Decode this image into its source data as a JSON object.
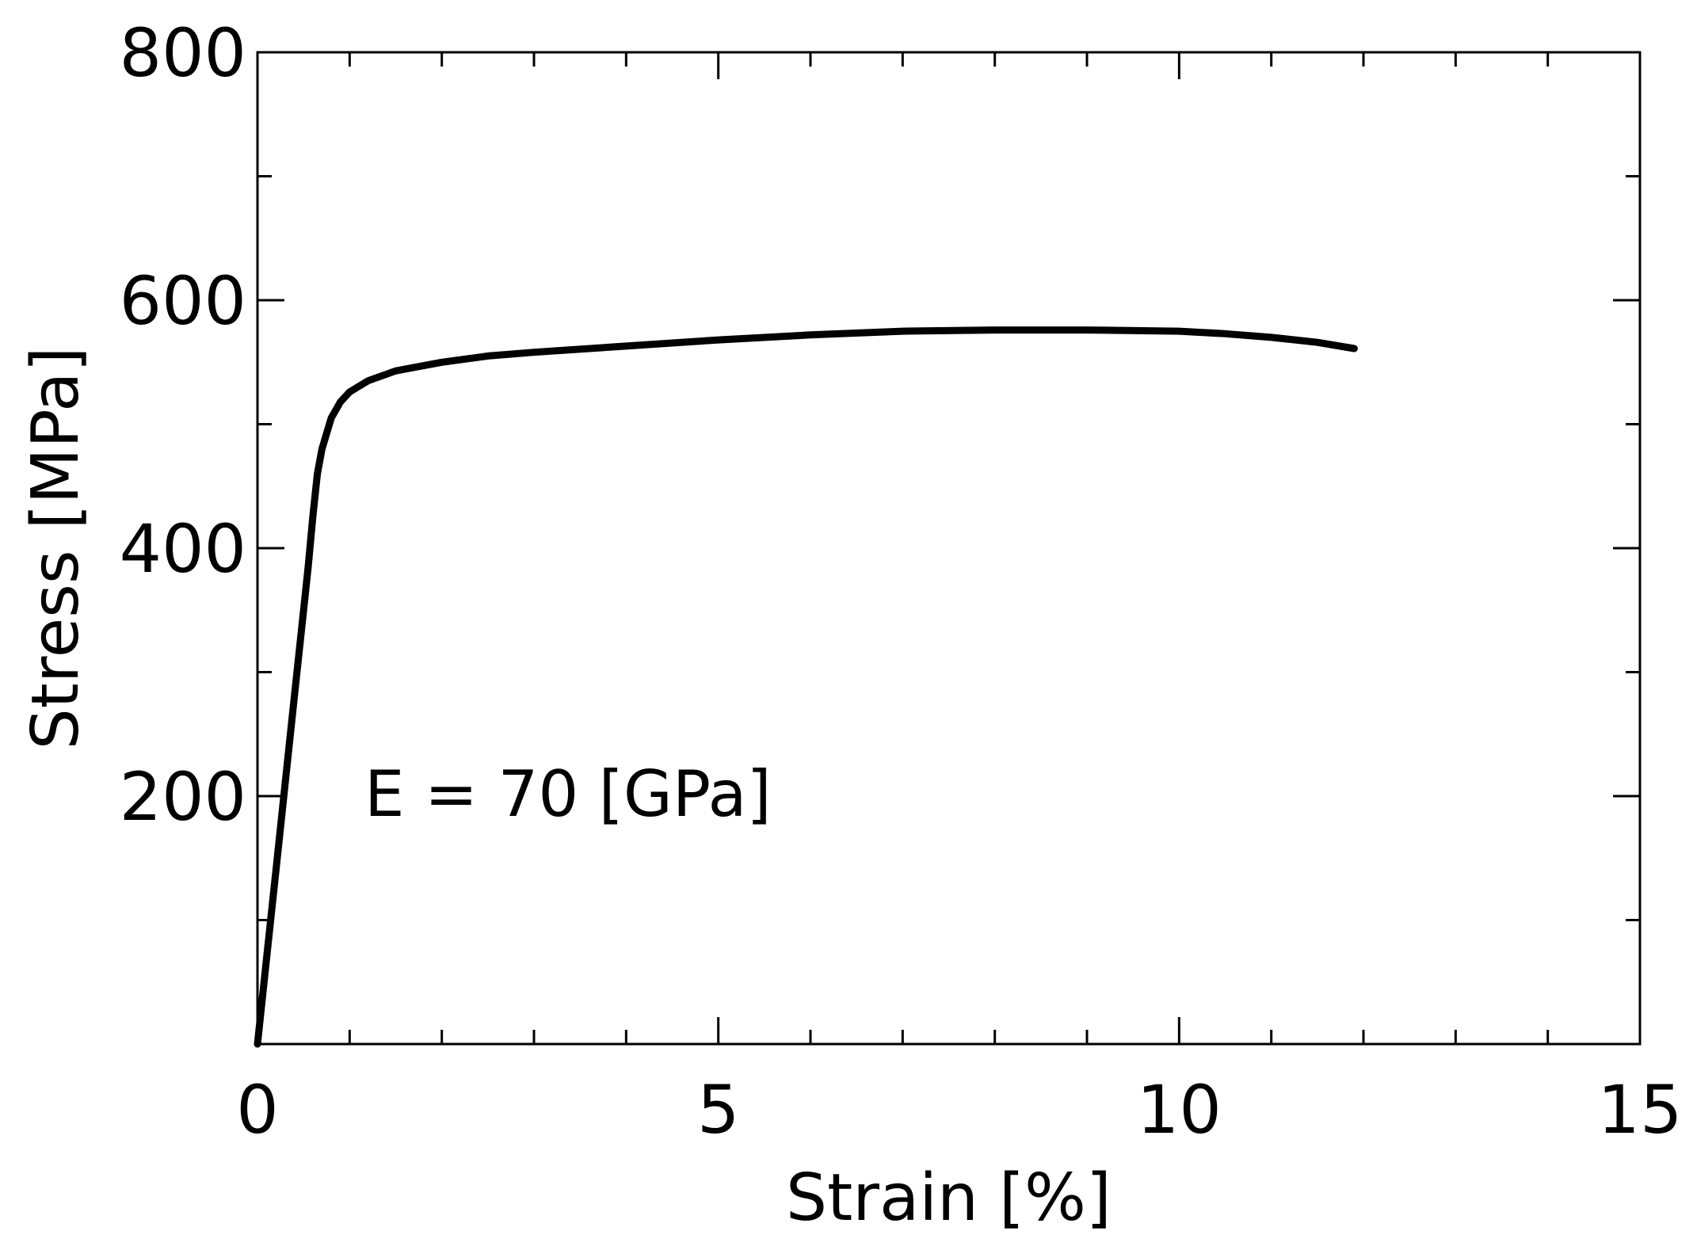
{
  "chart_data": {
    "type": "line",
    "title": "",
    "xlabel": "Strain [%]",
    "ylabel": "Stress [MPa]",
    "xlim": [
      0,
      15
    ],
    "ylim": [
      0,
      800
    ],
    "x_ticks": [
      0,
      5,
      10,
      15
    ],
    "y_ticks": [
      200,
      400,
      600,
      800
    ],
    "x_minor_ticks": [
      1,
      2,
      3,
      4,
      6,
      7,
      8,
      9,
      11,
      12,
      13,
      14
    ],
    "y_minor_ticks": [
      100,
      300,
      500,
      700
    ],
    "grid": false,
    "annotation": "E = 70 [GPa]",
    "colors": {
      "line": "#000000",
      "axes": "#000000"
    },
    "series": [
      {
        "x": [
          0.0,
          0.1,
          0.2,
          0.3,
          0.4,
          0.5,
          0.55,
          0.6,
          0.65,
          0.7,
          0.8,
          0.9,
          1.0,
          1.2,
          1.5,
          2.0,
          2.5,
          3.0,
          4.0,
          5.0,
          6.0,
          7.0,
          8.0,
          9.0,
          10.0,
          10.5,
          11.0,
          11.5,
          11.9
        ],
        "y": [
          0,
          70,
          140,
          210,
          280,
          350,
          385,
          425,
          460,
          480,
          505,
          518,
          526,
          535,
          543,
          550,
          555,
          558,
          563,
          568,
          572,
          575,
          576,
          576,
          575,
          573,
          570,
          566,
          561
        ]
      }
    ]
  }
}
